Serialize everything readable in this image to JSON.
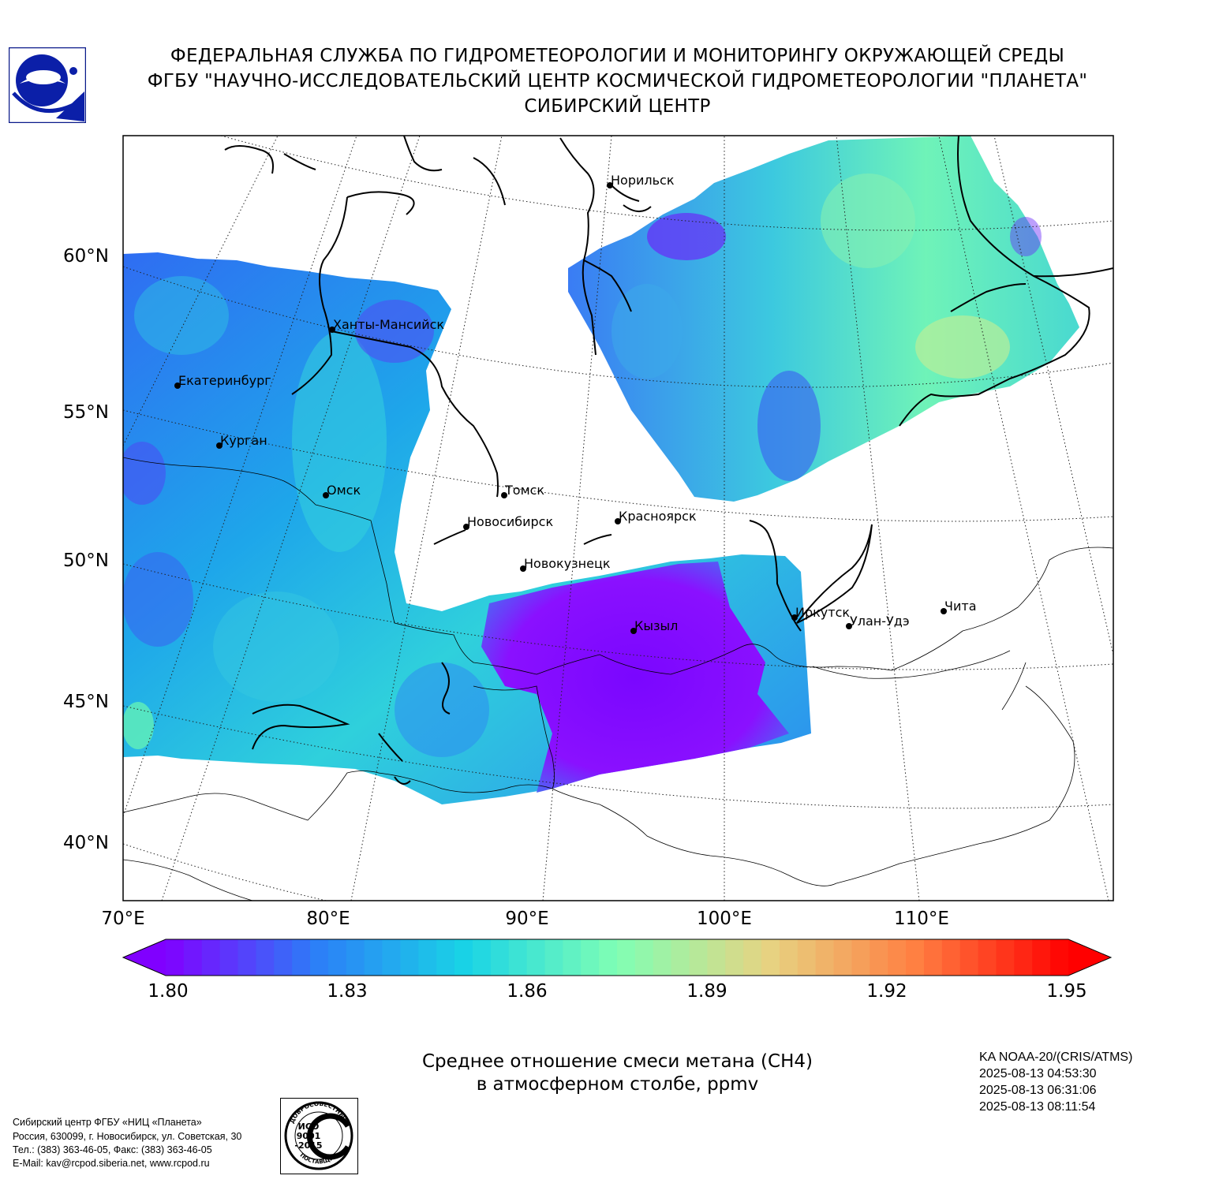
{
  "header": {
    "line1": "ФЕДЕРАЛЬНАЯ СЛУЖБА ПО ГИДРОМЕТЕОРОЛОГИИ И МОНИТОРИНГУ ОКРУЖАЮЩЕЙ СРЕДЫ",
    "line2": "ФГБУ \"НАУЧНО-ИССЛЕДОВАТЕЛЬСКИЙ ЦЕНТР КОСМИЧЕСКОЙ ГИДРОМЕТЕОРОЛОГИИ \"ПЛАНЕТА\"",
    "line3": "СИБИРСКИЙ ЦЕНТР"
  },
  "map": {
    "lat_labels": [
      "60°N",
      "55°N",
      "50°N",
      "45°N",
      "40°N"
    ],
    "lon_labels": [
      "70°E",
      "80°E",
      "90°E",
      "100°E",
      "110°E"
    ],
    "cities": [
      {
        "name": "Норильск"
      },
      {
        "name": "Ханты-Мансийск"
      },
      {
        "name": "Екатеринбург"
      },
      {
        "name": "Курган"
      },
      {
        "name": "Омск"
      },
      {
        "name": "Томск"
      },
      {
        "name": "Новосибирск"
      },
      {
        "name": "Красноярск"
      },
      {
        "name": "Новокузнецк"
      },
      {
        "name": "Иркутск"
      },
      {
        "name": "Кызыл"
      },
      {
        "name": "Улан-Удэ"
      },
      {
        "name": "Чита"
      }
    ]
  },
  "colorbar": {
    "min": 1.8,
    "max": 1.95,
    "tick_labels": [
      "1.80",
      "1.83",
      "1.86",
      "1.89",
      "1.92",
      "1.95"
    ],
    "colors": [
      "#8000ff",
      "#2c7ef7",
      "#19d4e6",
      "#80ffb4",
      "#e6d482",
      "#ff7e41",
      "#ff0000"
    ]
  },
  "caption": {
    "line1": "Среднее отношение смеси метана (CH4)",
    "line2": "в атмосферном столбе, ppmv"
  },
  "satellite": {
    "name": "KA NOAA-20/(CRIS/ATMS)",
    "times": [
      "2025-08-13 04:53:30",
      "2025-08-13 06:31:06",
      "2025-08-13 08:11:54"
    ]
  },
  "contact": {
    "line1": "Сибирский центр ФГБУ «НИЦ «Планета»",
    "line2": "Россия, 630099, г. Новосибирск, ул. Советская, 30",
    "line3": "Тел.: (383) 363-46-05, Факс: (383) 363-46-05",
    "line4": "E-Mail: kav@rcpod.siberia.net, www.rcpod.ru"
  },
  "iso_badge": {
    "top_text": "ДОБРОСОВЕСТНЫЙ",
    "line1": "ИСО",
    "line2": "9001",
    "line3": "-2015",
    "bottom_text": "ПОСТАВЩИК"
  }
}
